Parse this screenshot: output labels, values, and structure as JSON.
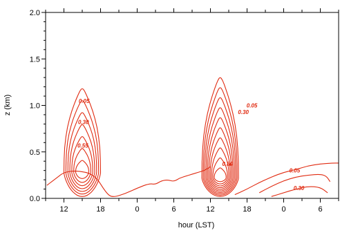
{
  "chart_data": {
    "type": "contour",
    "xlabel": "hour (LST)",
    "ylabel": "z (km)",
    "x_tick_labels": [
      "12",
      "18",
      "0",
      "6",
      "12",
      "18",
      "0",
      "6"
    ],
    "x_tick_values": [
      12,
      18,
      24,
      30,
      36,
      42,
      48,
      54
    ],
    "x_range": [
      9,
      57
    ],
    "y_tick_labels": [
      "0.0",
      "0.5",
      "1.0",
      "1.5",
      "2.0"
    ],
    "y_tick_values": [
      0.0,
      0.5,
      1.0,
      1.5,
      2.0
    ],
    "ylim": [
      0,
      2.0
    ],
    "line_color": "#e02a10",
    "contour_labels": [
      {
        "text": "0.05",
        "x": 15.3,
        "y": 1.05
      },
      {
        "text": "0.30",
        "x": 15.2,
        "y": 0.82
      },
      {
        "text": "0.55",
        "x": 15.1,
        "y": 0.57
      },
      {
        "text": "0.05",
        "x": 42.8,
        "y": 1.0
      },
      {
        "text": "0.30",
        "x": 41.4,
        "y": 0.93
      },
      {
        "text": "0.80",
        "x": 38.8,
        "y": 0.37
      },
      {
        "text": "0.05",
        "x": 49.8,
        "y": 0.3
      },
      {
        "text": "0.30",
        "x": 50.5,
        "y": 0.11
      }
    ],
    "plumes": [
      {
        "center_x": 15.0,
        "center_y": 0.28,
        "top_y": 1.18,
        "half_width": 3.0,
        "levels": 7
      },
      {
        "center_x": 37.6,
        "center_y": 0.22,
        "top_y": 1.3,
        "half_width": 3.0,
        "levels": 10
      }
    ],
    "boundary_layer_x": [
      9.2,
      10,
      11,
      12,
      14,
      17,
      19,
      20,
      22,
      24,
      26,
      27,
      28,
      29,
      30,
      31,
      32,
      33,
      34,
      35,
      36
    ],
    "boundary_layer_y": [
      0.14,
      0.18,
      0.23,
      0.28,
      0.3,
      0.26,
      0.05,
      0.01,
      0.05,
      0.11,
      0.16,
      0.15,
      0.19,
      0.2,
      0.18,
      0.22,
      0.24,
      0.26,
      0.28,
      0.3,
      0.34
    ],
    "night_top_x": [
      40,
      42,
      44,
      46,
      48,
      50,
      52,
      54,
      56,
      57
    ],
    "night_top_y": [
      0.04,
      0.1,
      0.17,
      0.23,
      0.28,
      0.31,
      0.35,
      0.37,
      0.38,
      0.38
    ],
    "night_inner_x": [
      44,
      46,
      48,
      50,
      52,
      54,
      55,
      55.6
    ],
    "night_inner_y": [
      0.06,
      0.13,
      0.19,
      0.23,
      0.25,
      0.26,
      0.24,
      0.18
    ]
  }
}
